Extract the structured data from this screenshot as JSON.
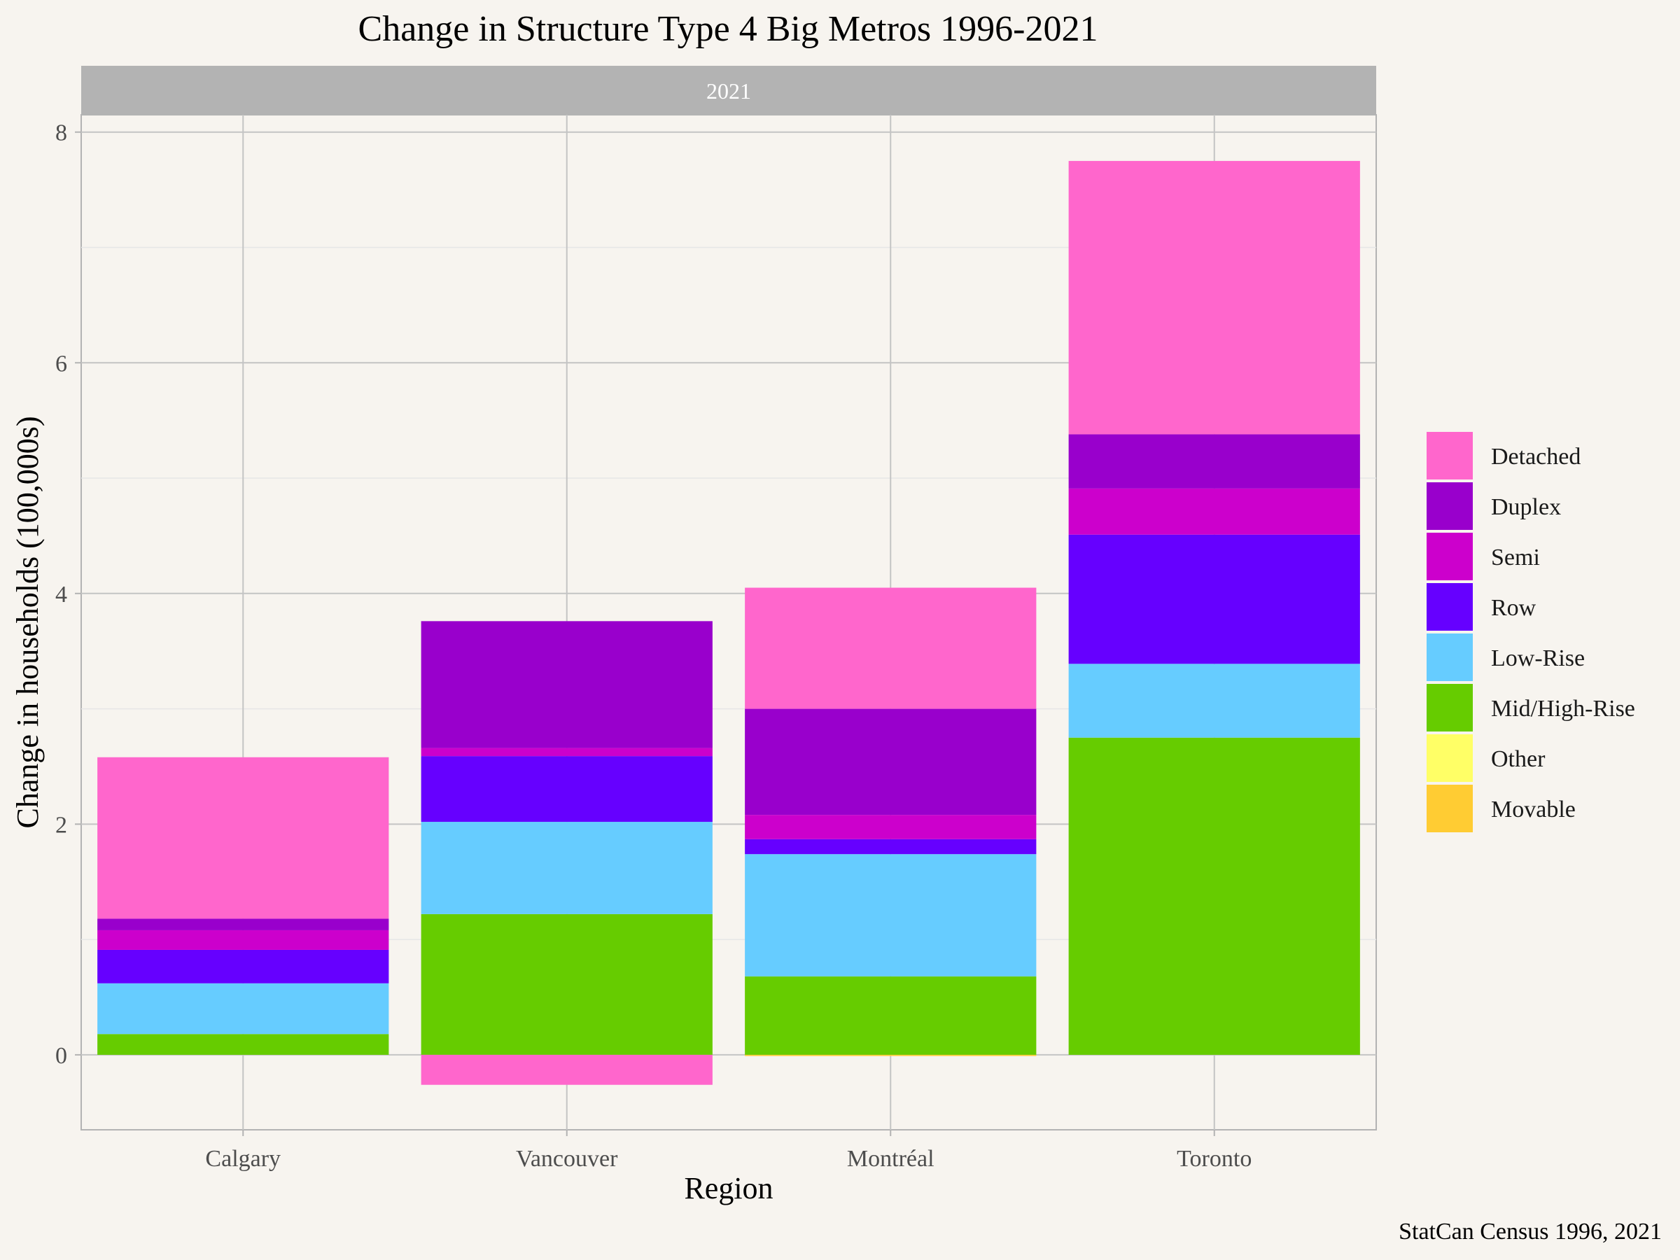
{
  "chart_data": {
    "type": "bar",
    "stacked": true,
    "title": "Change in Structure Type 4 Big Metros 1996-2021",
    "facet_label": "2021",
    "xlabel": "Region",
    "ylabel": "Change in households (100,000s)",
    "caption": "StatCan Census 1996, 2021",
    "categories": [
      "Calgary",
      "Vancouver",
      "Montréal",
      "Toronto"
    ],
    "ylim": [
      -0.65,
      8.15
    ],
    "yticks": [
      0,
      2,
      4,
      6,
      8
    ],
    "grid": true,
    "legend_position": "right",
    "series": [
      {
        "name": "Mid/High-Rise",
        "color": "#66cc00",
        "values": [
          0.18,
          1.22,
          0.68,
          2.75
        ]
      },
      {
        "name": "Low-Rise",
        "color": "#66ccff",
        "values": [
          0.44,
          0.8,
          1.06,
          0.64
        ]
      },
      {
        "name": "Row",
        "color": "#6600ff",
        "values": [
          0.29,
          0.57,
          0.13,
          1.12
        ]
      },
      {
        "name": "Semi",
        "color": "#cc00cc",
        "values": [
          0.17,
          0.07,
          0.21,
          0.4
        ]
      },
      {
        "name": "Duplex",
        "color": "#9900cc",
        "values": [
          0.1,
          1.1,
          0.92,
          0.47
        ]
      },
      {
        "name": "Detached",
        "color": "#ff66cc",
        "values": [
          1.4,
          -0.26,
          1.05,
          2.37
        ]
      },
      {
        "name": "Other",
        "color": "#ffff66",
        "values": [
          0.0,
          0.0,
          0.0,
          0.0
        ]
      },
      {
        "name": "Movable",
        "color": "#ffcc33",
        "values": [
          0.0,
          0.0,
          -0.01,
          0.0
        ]
      }
    ],
    "legend_order": [
      "Detached",
      "Duplex",
      "Semi",
      "Row",
      "Low-Rise",
      "Mid/High-Rise",
      "Other",
      "Movable"
    ]
  }
}
